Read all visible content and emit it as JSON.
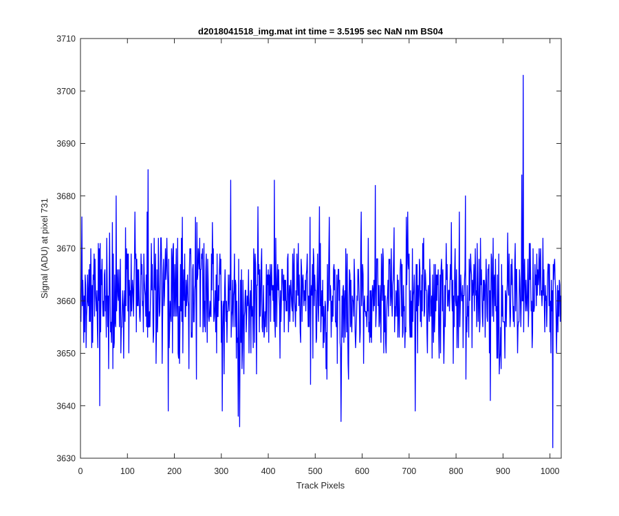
{
  "chart_data": {
    "type": "line",
    "title": "d2018041518_img.mat int time = 3.5195 sec  NaN nm BS04",
    "xlabel": "Track Pixels",
    "ylabel": "Signal (ADU) at pixel 731",
    "xlim": [
      0,
      1024
    ],
    "ylim": [
      3630,
      3710
    ],
    "xticks": [
      0,
      100,
      200,
      300,
      400,
      500,
      600,
      700,
      800,
      900,
      1000
    ],
    "yticks": [
      3630,
      3640,
      3650,
      3660,
      3670,
      3680,
      3690,
      3700,
      3710
    ],
    "grid": false,
    "legend": "none",
    "series_color": "#0000ff",
    "series": [
      {
        "n_points": 1024,
        "baseline": 3661,
        "noise_sd": 6,
        "values_min": 3632,
        "values_max": 3703,
        "notable_points": [
          {
            "x": 3,
            "y": 3676
          },
          {
            "x": 41,
            "y": 3640
          },
          {
            "x": 76,
            "y": 3680
          },
          {
            "x": 144,
            "y": 3685
          },
          {
            "x": 187,
            "y": 3639
          },
          {
            "x": 302,
            "y": 3639
          },
          {
            "x": 320,
            "y": 3683
          },
          {
            "x": 336,
            "y": 3638
          },
          {
            "x": 339,
            "y": 3636
          },
          {
            "x": 413,
            "y": 3683
          },
          {
            "x": 555,
            "y": 3637
          },
          {
            "x": 628,
            "y": 3682
          },
          {
            "x": 713,
            "y": 3639
          },
          {
            "x": 820,
            "y": 3680
          },
          {
            "x": 873,
            "y": 3641
          },
          {
            "x": 940,
            "y": 3684
          },
          {
            "x": 943,
            "y": 3703
          },
          {
            "x": 1006,
            "y": 3632
          }
        ]
      }
    ]
  }
}
